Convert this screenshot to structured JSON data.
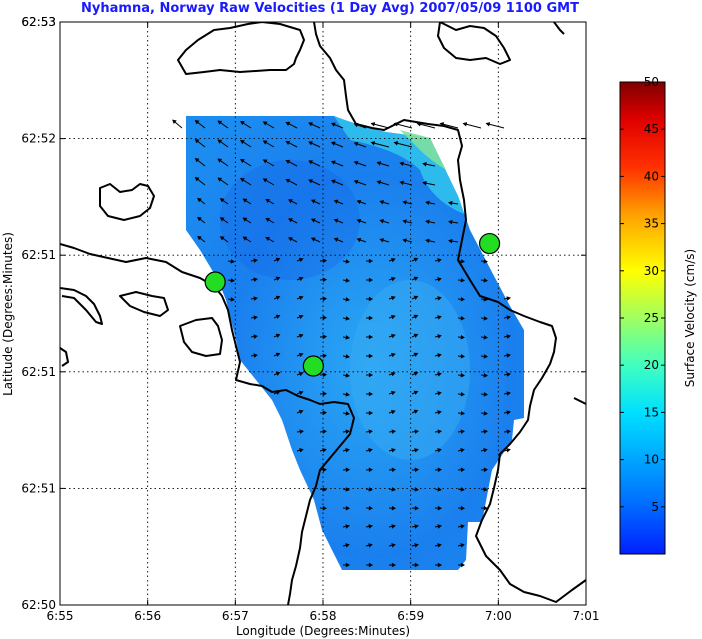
{
  "title": "Nyhamna, Norway Raw Velocities (1 Day Avg) 2007/05/09 1100 GMT",
  "xlabel": "Longitude (Degrees:Minutes)",
  "ylabel": "Latitude (Degrees:Minutes)",
  "colors": {
    "title": "#1a1aff",
    "station_fill": "#22dd22",
    "coastline": "#000000",
    "vectors": "#000000"
  },
  "chart_data": {
    "type": "heatmap",
    "subtype": "surface current map with velocity vectors",
    "xlim": [
      -0.5,
      5.5
    ],
    "ylim": [
      0,
      5
    ],
    "xticks": [
      -0.5,
      0.5,
      1.5,
      2.5,
      3.5,
      4.5,
      5.5
    ],
    "xtick_labels": [
      "6:55",
      "6:56",
      "6:57",
      "6:58",
      "6:59",
      "7:00",
      "7:01"
    ],
    "yticks": [
      0,
      1,
      2,
      3,
      4,
      5
    ],
    "ytick_labels": [
      "62:50",
      "62:51",
      "62:51",
      "62:51",
      "62:52",
      "62:53"
    ],
    "top_tick_label": "62:53",
    "grid": true,
    "colorbar": {
      "label": "Surface Velocity (cm/s)",
      "min": 0,
      "max": 50,
      "ticks": [
        5,
        10,
        15,
        20,
        25,
        30,
        35,
        40,
        45,
        50
      ],
      "colormap": "jet"
    },
    "stations": [
      {
        "x": 1.27,
        "y": 2.77
      },
      {
        "x": 2.39,
        "y": 2.05
      },
      {
        "x": 4.4,
        "y": 3.1
      }
    ]
  }
}
